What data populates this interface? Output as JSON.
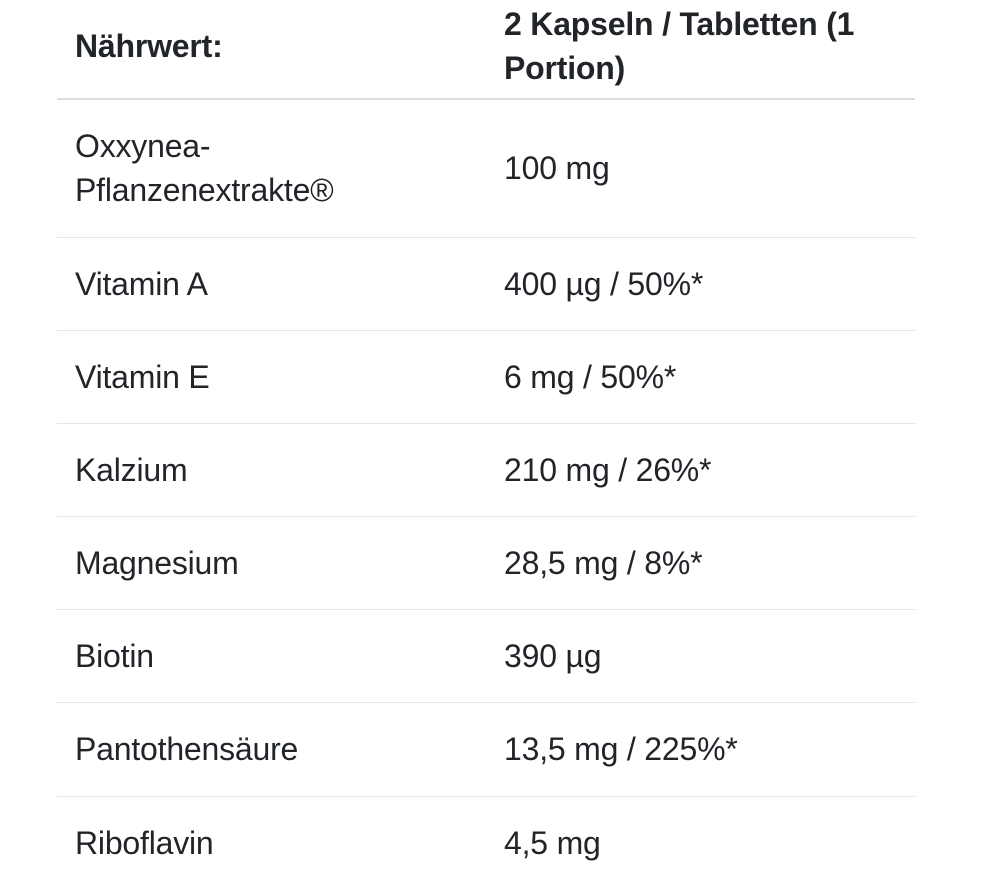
{
  "nutrition_table": {
    "header": {
      "label": "Nährwert:",
      "value": "2 Kapseln / Tabletten (1 Portion)"
    },
    "rows": [
      {
        "label": "Oxxynea-Pflanzenextrakte®",
        "value": "100 mg"
      },
      {
        "label": "Vitamin A",
        "value": "400 µg / 50%*"
      },
      {
        "label": "Vitamin E",
        "value": "6 mg / 50%*"
      },
      {
        "label": "Kalzium",
        "value": "210 mg / 26%*"
      },
      {
        "label": "Magnesium",
        "value": "28,5 mg / 8%*"
      },
      {
        "label": "Biotin",
        "value": "390 µg"
      },
      {
        "label": "Pantothensäure",
        "value": "13,5 mg / 225%*"
      },
      {
        "label": "Riboflavin",
        "value": "4,5 mg"
      }
    ],
    "colors": {
      "text": "#212529",
      "divider": "#e3e5e7",
      "background": "#ffffff"
    }
  }
}
